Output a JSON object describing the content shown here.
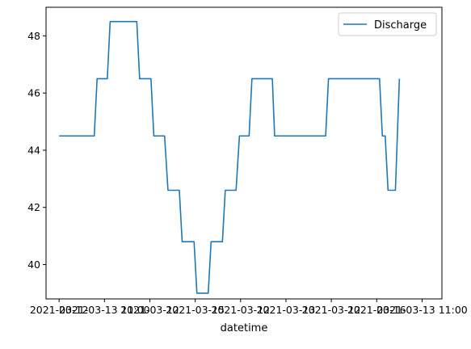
{
  "chart_data": {
    "type": "line",
    "xlabel": "datetime",
    "ylabel": "",
    "title": "",
    "x_tick_labels": [
      "2021-03-12",
      "2021-03-13 11:00",
      "2021-03-12",
      "2021-03-15",
      "2021-03-12",
      "2021-03-13",
      "2021-03-12",
      "2021-03-16",
      "2021-03-13 11:00"
    ],
    "x_tick_positions": [
      0,
      8,
      16,
      24,
      32,
      40,
      48,
      56,
      64
    ],
    "ylim": [
      38.8,
      49.0
    ],
    "yticks": [
      40,
      42,
      44,
      46,
      48
    ],
    "xlim": [
      -2.3,
      67.5
    ],
    "grid": false,
    "legend_position": "top-right",
    "series": [
      {
        "name": "Discharge",
        "color": "#1f77b4",
        "x": [
          0,
          6.2,
          6.7,
          8.5,
          9.0,
          13.7,
          14.2,
          16.2,
          16.7,
          18.6,
          19.2,
          21.2,
          21.7,
          23.8,
          24.3,
          26.3,
          26.8,
          28.8,
          29.3,
          31.2,
          31.8,
          33.5,
          34.0,
          35.0,
          35.5,
          37.6,
          38.0,
          42.5,
          43.0,
          47.0,
          47.5,
          56.5,
          57.0,
          57.5,
          58.0,
          58.8,
          59.3,
          60.0
        ],
        "values": [
          44.5,
          44.5,
          46.5,
          46.5,
          48.5,
          48.5,
          46.5,
          46.5,
          44.5,
          44.5,
          42.6,
          42.6,
          40.8,
          40.8,
          39.0,
          39.0,
          40.8,
          40.8,
          42.6,
          42.6,
          44.5,
          44.5,
          46.5,
          46.5,
          46.5,
          46.5,
          44.5,
          44.5,
          44.5,
          44.5,
          46.5,
          46.5,
          44.5,
          44.5,
          42.6,
          42.6,
          42.6,
          46.5
        ]
      }
    ]
  }
}
